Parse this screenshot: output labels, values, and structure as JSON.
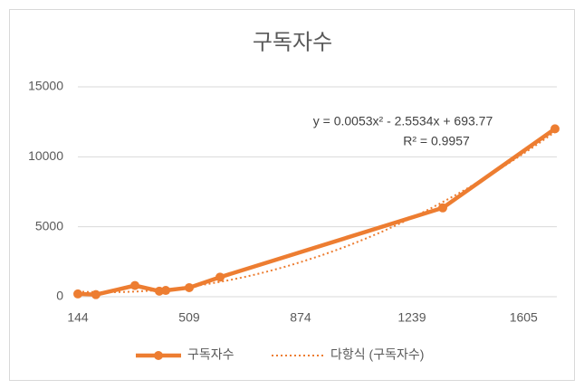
{
  "chart_data": {
    "type": "scatter-line",
    "title": "구독자수",
    "x": [
      144,
      203,
      331,
      411,
      432,
      509,
      610,
      1340,
      1708
    ],
    "series": [
      {
        "name": "구독자수",
        "color": "#ed7d31",
        "values": [
          200,
          150,
          800,
          400,
          450,
          650,
          1400,
          6350,
          12000
        ]
      }
    ],
    "trendline": {
      "name": "다항식 (구독자수)",
      "color": "#ed7d31",
      "degree": 2
    },
    "annotations": [
      "y = 0.0053x² - 2.5534x + 693.77",
      "R² = 0.9957"
    ],
    "xlim": [
      144,
      1714
    ],
    "xticks": [
      144,
      509,
      874,
      1239,
      1605
    ],
    "ylim": [
      0,
      15000
    ],
    "yticks": [
      0,
      5000,
      10000,
      15000
    ],
    "grid": true,
    "legend": "bottom"
  }
}
